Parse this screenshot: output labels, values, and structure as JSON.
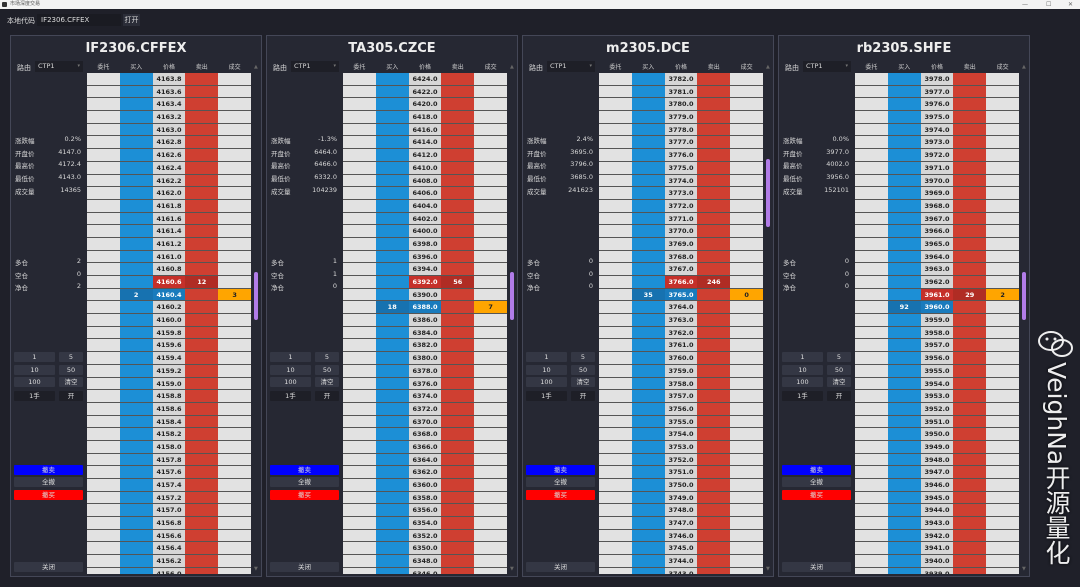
{
  "window": {
    "title": "市场深度交易"
  },
  "toolbar": {
    "code_label": "本地代码",
    "code_value": "IF2306.CFFEX",
    "open_label": "打开"
  },
  "labels": {
    "route": "路由",
    "headers": [
      "委托",
      "买入",
      "价格",
      "卖出",
      "成交"
    ],
    "stats": [
      "涨跌幅",
      "开盘价",
      "最高价",
      "最低价",
      "成交量"
    ],
    "positions": [
      "多仓",
      "空仓",
      "净仓"
    ],
    "qty_buttons": [
      "1",
      "5",
      "10",
      "50",
      "100",
      "清空"
    ],
    "volume": "1手",
    "offset": "开",
    "cancel_sell": "撤卖",
    "cancel_all": "全撤",
    "cancel_buy": "撤买",
    "close": "关闭"
  },
  "colors": {
    "buy": "#1c8fd6",
    "sell": "#cf3f31",
    "trade": "#ffa500",
    "cancel_sell": "#0000ff",
    "cancel_buy": "#ff0000",
    "scroll_thumb": "#b17ce8"
  },
  "watermark": "VeighNa开源量化",
  "panels": [
    {
      "symbol": "IF2306.CFFEX",
      "route": "CTP1",
      "stats": [
        "0.2%",
        "4147.0",
        "4172.4",
        "4143.0",
        "14365"
      ],
      "positions": [
        "2",
        "0",
        "2"
      ],
      "prices": [
        "4163.8",
        "4163.6",
        "4163.4",
        "4163.2",
        "4163.0",
        "4162.8",
        "4162.6",
        "4162.4",
        "4162.2",
        "4162.0",
        "4161.8",
        "4161.6",
        "4161.4",
        "4161.2",
        "4161.0",
        "4160.8",
        "4160.6",
        "4160.4",
        "4160.2",
        "4160.0",
        "4159.8",
        "4159.6",
        "4159.4",
        "4159.2",
        "4159.0",
        "4158.8",
        "4158.6",
        "4158.4",
        "4158.2",
        "4158.0",
        "4157.8",
        "4157.6",
        "4157.4",
        "4157.2",
        "4157.0",
        "4156.8",
        "4156.6",
        "4156.4",
        "4156.2",
        "4156.0"
      ],
      "ask": {
        "price": "4160.6",
        "volume": "12"
      },
      "bid": {
        "price": "4160.4",
        "volume": "2"
      },
      "trade": {
        "price": "4160.4",
        "volume": "3"
      },
      "scroll": 0.45
    },
    {
      "symbol": "TA305.CZCE",
      "route": "CTP1",
      "stats": [
        "-1.3%",
        "6464.0",
        "6466.0",
        "6332.0",
        "104239"
      ],
      "positions": [
        "1",
        "1",
        "0"
      ],
      "prices": [
        "6424.0",
        "6422.0",
        "6420.0",
        "6418.0",
        "6416.0",
        "6414.0",
        "6412.0",
        "6410.0",
        "6408.0",
        "6406.0",
        "6404.0",
        "6402.0",
        "6400.0",
        "6398.0",
        "6396.0",
        "6394.0",
        "6392.0",
        "6390.0",
        "6388.0",
        "6386.0",
        "6384.0",
        "6382.0",
        "6380.0",
        "6378.0",
        "6376.0",
        "6374.0",
        "6372.0",
        "6370.0",
        "6368.0",
        "6366.0",
        "6364.0",
        "6362.0",
        "6360.0",
        "6358.0",
        "6356.0",
        "6354.0",
        "6352.0",
        "6350.0",
        "6348.0",
        "6346.0"
      ],
      "ask": {
        "price": "6392.0",
        "volume": "56"
      },
      "bid": {
        "price": "6388.0",
        "volume": "18"
      },
      "trade": {
        "price": "6388.0",
        "volume": "7"
      },
      "scroll": 0.45
    },
    {
      "symbol": "m2305.DCE",
      "route": "CTP1",
      "stats": [
        "2.4%",
        "3695.0",
        "3796.0",
        "3685.0",
        "241623"
      ],
      "positions": [
        "0",
        "0",
        "0"
      ],
      "prices": [
        "3782.0",
        "3781.0",
        "3780.0",
        "3779.0",
        "3778.0",
        "3777.0",
        "3776.0",
        "3775.0",
        "3774.0",
        "3773.0",
        "3772.0",
        "3771.0",
        "3770.0",
        "3769.0",
        "3768.0",
        "3767.0",
        "3766.0",
        "3765.0",
        "3764.0",
        "3763.0",
        "3762.0",
        "3761.0",
        "3760.0",
        "3759.0",
        "3758.0",
        "3757.0",
        "3756.0",
        "3755.0",
        "3754.0",
        "3753.0",
        "3752.0",
        "3751.0",
        "3750.0",
        "3749.0",
        "3748.0",
        "3747.0",
        "3746.0",
        "3745.0",
        "3744.0",
        "3743.0"
      ],
      "ask": {
        "price": "3766.0",
        "volume": "246"
      },
      "bid": {
        "price": "3765.0",
        "volume": "35"
      },
      "trade": {
        "price": "3765.0",
        "volume": "0"
      },
      "scroll": 0.2
    },
    {
      "symbol": "rb2305.SHFE",
      "route": "CTP1",
      "stats": [
        "0.0%",
        "3977.0",
        "4002.0",
        "3956.0",
        "152101"
      ],
      "positions": [
        "0",
        "0",
        "0"
      ],
      "prices": [
        "3978.0",
        "3977.0",
        "3976.0",
        "3975.0",
        "3974.0",
        "3973.0",
        "3972.0",
        "3971.0",
        "3970.0",
        "3969.0",
        "3968.0",
        "3967.0",
        "3966.0",
        "3965.0",
        "3964.0",
        "3963.0",
        "3962.0",
        "3961.0",
        "3960.0",
        "3959.0",
        "3958.0",
        "3957.0",
        "3956.0",
        "3955.0",
        "3954.0",
        "3953.0",
        "3952.0",
        "3951.0",
        "3950.0",
        "3949.0",
        "3948.0",
        "3947.0",
        "3946.0",
        "3945.0",
        "3944.0",
        "3943.0",
        "3942.0",
        "3941.0",
        "3940.0",
        "3939.0"
      ],
      "ask": {
        "price": "3961.0",
        "volume": "29"
      },
      "bid": {
        "price": "3960.0",
        "volume": "92"
      },
      "trade": {
        "price": "3961.0",
        "volume": "2"
      },
      "scroll": 0.45
    }
  ]
}
